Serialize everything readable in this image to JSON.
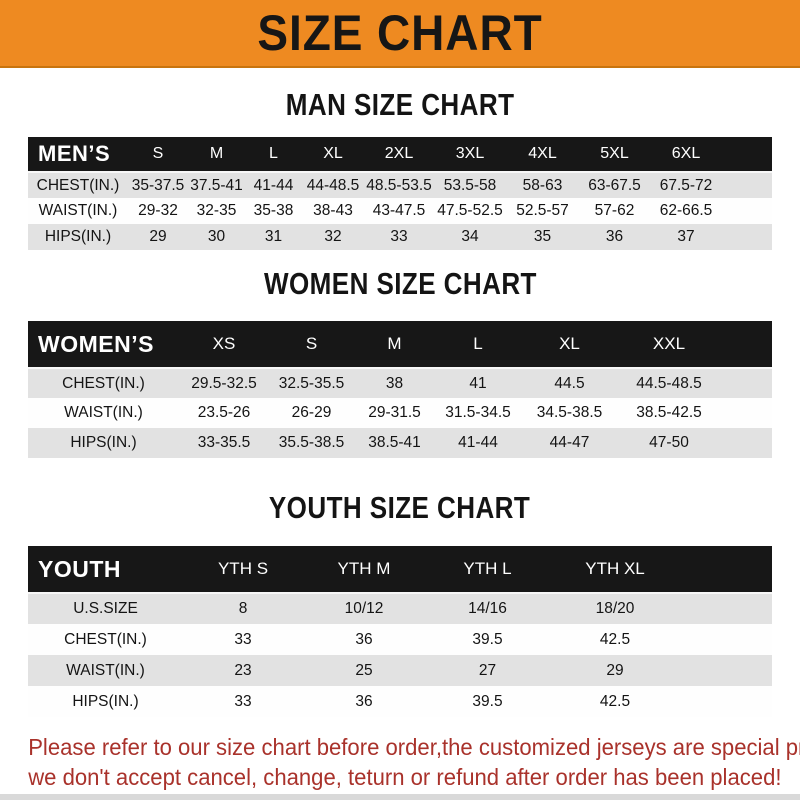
{
  "banner": {
    "title": "SIZE CHART"
  },
  "sections": [
    {
      "heading": "MAN SIZE CHART",
      "table": {
        "label": "MEN’S",
        "sizes": [
          "S",
          "M",
          "L",
          "XL",
          "2XL",
          "3XL",
          "4XL",
          "5XL",
          "6XL"
        ],
        "rows": [
          {
            "label": "CHEST(IN.)",
            "values": [
              "35-37.5",
              "37.5-41",
              "41-44",
              "44-48.5",
              "48.5-53.5",
              "53.5-58",
              "58-63",
              "63-67.5",
              "67.5-72"
            ]
          },
          {
            "label": "WAIST(IN.)",
            "values": [
              "29-32",
              "32-35",
              "35-38",
              "38-43",
              "43-47.5",
              "47.5-52.5",
              "52.5-57",
              "57-62",
              "62-66.5"
            ]
          },
          {
            "label": "HIPS(IN.)",
            "values": [
              "29",
              "30",
              "31",
              "32",
              "33",
              "34",
              "35",
              "36",
              "37"
            ]
          }
        ]
      }
    },
    {
      "heading": "WOMEN SIZE CHART",
      "table": {
        "label": "WOMEN’S",
        "sizes": [
          "XS",
          "S",
          "M",
          "L",
          "XL",
          "XXL"
        ],
        "rows": [
          {
            "label": "CHEST(IN.)",
            "values": [
              "29.5-32.5",
              "32.5-35.5",
              "38",
              "41",
              "44.5",
              "44.5-48.5"
            ]
          },
          {
            "label": "WAIST(IN.)",
            "values": [
              "23.5-26",
              "26-29",
              "29-31.5",
              "31.5-34.5",
              "34.5-38.5",
              "38.5-42.5"
            ]
          },
          {
            "label": "HIPS(IN.)",
            "values": [
              "33-35.5",
              "35.5-38.5",
              "38.5-41",
              "41-44",
              "44-47",
              "47-50"
            ]
          }
        ]
      }
    },
    {
      "heading": "YOUTH SIZE CHART",
      "table": {
        "label": "YOUTH",
        "sizes": [
          "YTH S",
          "YTH M",
          "YTH L",
          "YTH XL"
        ],
        "rows": [
          {
            "label": "U.S.SIZE",
            "values": [
              "8",
              "10/12",
              "14/16",
              "18/20"
            ]
          },
          {
            "label": "CHEST(IN.)",
            "values": [
              "33",
              "36",
              "39.5",
              "42.5"
            ]
          },
          {
            "label": "WAIST(IN.)",
            "values": [
              "23",
              "25",
              "27",
              "29"
            ]
          },
          {
            "label": "HIPS(IN.)",
            "values": [
              "33",
              "36",
              "39.5",
              "42.5"
            ]
          }
        ]
      }
    }
  ],
  "footer": {
    "line1": "Please refer to our size chart before order,the customized jerseys are special products,",
    "line2": "we don't accept cancel, change, teturn or refund after order has been placed!"
  },
  "colors": {
    "banner_bg": "#EE8A21",
    "header_bar_bg": "#171717",
    "alt_row_bg": "#E2E2E2",
    "footer_text": "#A9322B"
  }
}
